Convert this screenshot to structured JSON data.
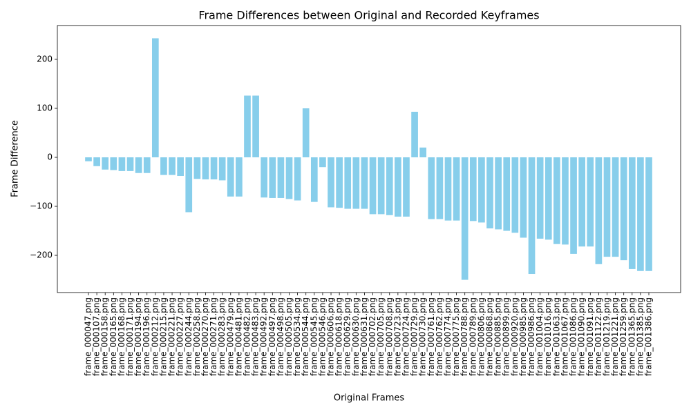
{
  "chart_data": {
    "type": "bar",
    "title": "Frame Differences between Original and Recorded Keyframes",
    "x_label": "Original Frames",
    "y_label": "Frame Difference",
    "color": "#87ceeb",
    "categories": [
      "frame_000047.png",
      "frame_000107.png",
      "frame_000158.png",
      "frame_000165.png",
      "frame_000168.png",
      "frame_000171.png",
      "frame_000194.png",
      "frame_000196.png",
      "frame_000212.png",
      "frame_000215.png",
      "frame_000221.png",
      "frame_000227.png",
      "frame_000244.png",
      "frame_000258.png",
      "frame_000270.png",
      "frame_000271.png",
      "frame_000283.png",
      "frame_000479.png",
      "frame_000481.png",
      "frame_000482.png",
      "frame_000483.png",
      "frame_000492.png",
      "frame_000497.png",
      "frame_000498.png",
      "frame_000505.png",
      "frame_000534.png",
      "frame_000544.png",
      "frame_000545.png",
      "frame_000546.png",
      "frame_000606.png",
      "frame_000618.png",
      "frame_000629.png",
      "frame_000630.png",
      "frame_000631.png",
      "frame_000702.png",
      "frame_000705.png",
      "frame_000708.png",
      "frame_000723.png",
      "frame_000724.png",
      "frame_000729.png",
      "frame_000730.png",
      "frame_000761.png",
      "frame_000762.png",
      "frame_000774.png",
      "frame_000775.png",
      "frame_000788.png",
      "frame_000789.png",
      "frame_000806.png",
      "frame_000868.png",
      "frame_000885.png",
      "frame_000899.png",
      "frame_000920.png",
      "frame_000985.png",
      "frame_000986.png",
      "frame_001004.png",
      "frame_001016.png",
      "frame_001063.png",
      "frame_001067.png",
      "frame_001086.png",
      "frame_001090.png",
      "frame_001091.png",
      "frame_001122.png",
      "frame_001219.png",
      "frame_001221.png",
      "frame_001259.png",
      "frame_001365.png",
      "frame_001385.png",
      "frame_001386.png"
    ],
    "values": [
      -8,
      -18,
      -25,
      -26,
      -28,
      -28,
      -32,
      -32,
      243,
      -36,
      -36,
      -38,
      -112,
      -44,
      -45,
      -45,
      -47,
      -80,
      -80,
      126,
      126,
      -82,
      -83,
      -83,
      -85,
      -88,
      100,
      -91,
      -20,
      -102,
      -103,
      -105,
      -105,
      -105,
      -116,
      -116,
      -118,
      -121,
      -121,
      93,
      20,
      -126,
      -126,
      -129,
      -129,
      -250,
      -130,
      -133,
      -145,
      -147,
      -150,
      -154,
      -164,
      -238,
      -166,
      -168,
      -177,
      -178,
      -197,
      -182,
      -182,
      -218,
      -203,
      -203,
      -210,
      -228,
      -232,
      -232
    ],
    "ylim": [
      -276,
      269
    ],
    "yticks": [
      {
        "value": -200,
        "label": "−200"
      },
      {
        "value": -100,
        "label": "−100"
      },
      0,
      100,
      200
    ]
  }
}
